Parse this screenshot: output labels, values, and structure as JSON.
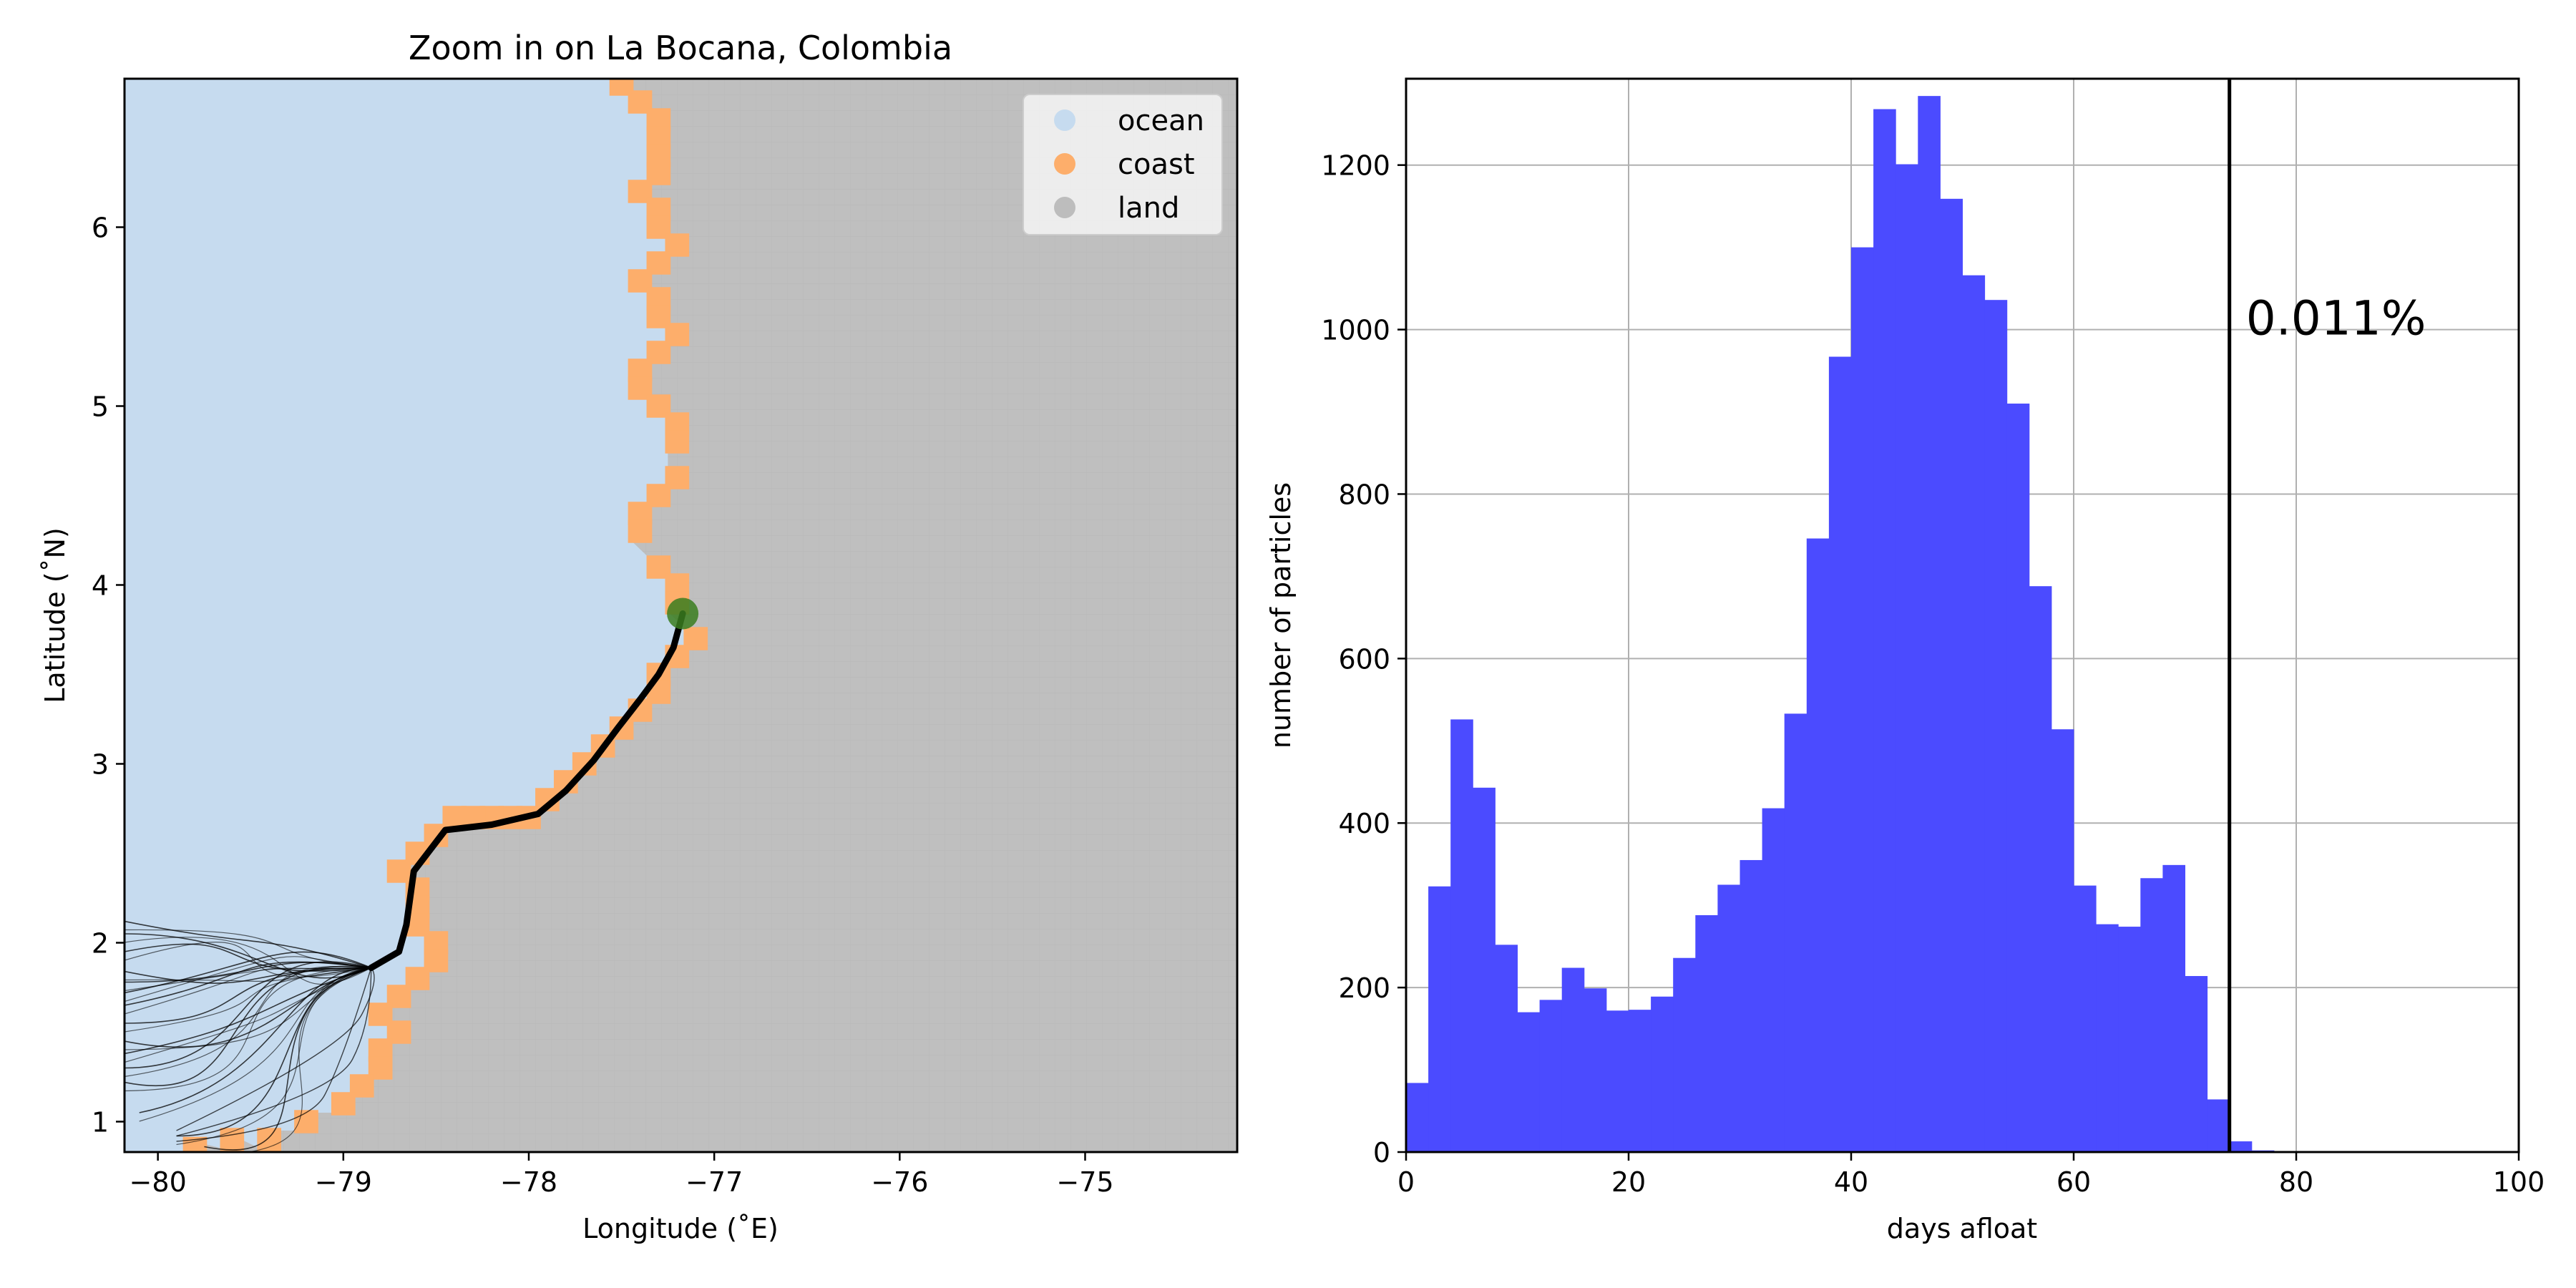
{
  "chart_data": [
    {
      "type": "map",
      "title": "Zoom in on La Bocana, Colombia",
      "xlabel": "Longitude (˚E)",
      "ylabel": "Latitude (˚N)",
      "xlim": [
        -80.18,
        -74.18
      ],
      "ylim": [
        0.83,
        6.83
      ],
      "xticks": [
        -80,
        -79,
        -78,
        -77,
        -76,
        -75
      ],
      "xtick_labels": [
        "−80",
        "−79",
        "−78",
        "−77",
        "−76",
        "−75"
      ],
      "yticks": [
        1,
        2,
        3,
        4,
        5,
        6
      ],
      "ytick_labels": [
        "1",
        "2",
        "3",
        "4",
        "5",
        "6"
      ],
      "legend": {
        "placement": "top-right",
        "entries": [
          {
            "label": "ocean",
            "color": "#c6dbef"
          },
          {
            "label": "coast",
            "color": "#fdae6b"
          },
          {
            "label": "land",
            "color": "#bdbdbd"
          }
        ]
      },
      "release_point": {
        "lon": -77.17,
        "lat": 3.84,
        "color": "#3a7d1e"
      },
      "coast_cells": [
        [
          -77.5,
          6.8
        ],
        [
          -77.4,
          6.7
        ],
        [
          -77.3,
          6.6
        ],
        [
          -77.3,
          6.5
        ],
        [
          -77.3,
          6.4
        ],
        [
          -77.3,
          6.3
        ],
        [
          -77.4,
          6.2
        ],
        [
          -77.3,
          6.1
        ],
        [
          -77.3,
          6.0
        ],
        [
          -77.2,
          5.9
        ],
        [
          -77.3,
          5.8
        ],
        [
          -77.4,
          5.7
        ],
        [
          -77.3,
          5.6
        ],
        [
          -77.3,
          5.5
        ],
        [
          -77.2,
          5.4
        ],
        [
          -77.3,
          5.3
        ],
        [
          -77.4,
          5.2
        ],
        [
          -77.4,
          5.1
        ],
        [
          -77.3,
          5.0
        ],
        [
          -77.2,
          4.9
        ],
        [
          -77.2,
          4.8
        ],
        [
          -77.2,
          4.6
        ],
        [
          -77.3,
          4.5
        ],
        [
          -77.4,
          4.4
        ],
        [
          -77.4,
          4.3
        ],
        [
          -77.3,
          4.1
        ],
        [
          -77.2,
          4.0
        ],
        [
          -77.2,
          3.9
        ],
        [
          -77.1,
          3.7
        ],
        [
          -77.2,
          3.6
        ],
        [
          -77.3,
          3.5
        ],
        [
          -77.3,
          3.4
        ],
        [
          -77.4,
          3.3
        ],
        [
          -77.5,
          3.2
        ],
        [
          -77.6,
          3.1
        ],
        [
          -77.7,
          3.0
        ],
        [
          -77.8,
          2.9
        ],
        [
          -77.9,
          2.8
        ],
        [
          -78.0,
          2.7
        ],
        [
          -78.1,
          2.7
        ],
        [
          -78.2,
          2.7
        ],
        [
          -78.3,
          2.7
        ],
        [
          -78.4,
          2.7
        ],
        [
          -78.5,
          2.6
        ],
        [
          -78.6,
          2.5
        ],
        [
          -78.7,
          2.4
        ],
        [
          -78.6,
          2.3
        ],
        [
          -78.6,
          2.2
        ],
        [
          -78.6,
          2.1
        ],
        [
          -78.5,
          2.0
        ],
        [
          -78.5,
          1.9
        ],
        [
          -78.6,
          1.8
        ],
        [
          -78.7,
          1.7
        ],
        [
          -78.8,
          1.6
        ],
        [
          -78.7,
          1.5
        ],
        [
          -78.8,
          1.4
        ],
        [
          -78.8,
          1.3
        ],
        [
          -78.9,
          1.2
        ],
        [
          -79.0,
          1.1
        ],
        [
          -79.2,
          1.0
        ],
        [
          -79.4,
          0.9
        ],
        [
          -79.6,
          0.9
        ],
        [
          -79.8,
          0.85
        ]
      ],
      "trajectory_bundle": [
        [
          -77.17,
          3.84
        ],
        [
          -77.22,
          3.65
        ],
        [
          -77.3,
          3.5
        ],
        [
          -77.4,
          3.36
        ],
        [
          -77.52,
          3.2
        ],
        [
          -77.65,
          3.02
        ],
        [
          -77.8,
          2.85
        ],
        [
          -77.95,
          2.72
        ],
        [
          -78.2,
          2.66
        ],
        [
          -78.45,
          2.63
        ],
        [
          -78.62,
          2.4
        ],
        [
          -78.66,
          2.1
        ],
        [
          -78.7,
          1.95
        ],
        [
          -78.85,
          1.86
        ]
      ],
      "trajectory_fan_ends": [
        [
          -80.18,
          1.72
        ],
        [
          -80.18,
          1.78
        ],
        [
          -80.18,
          1.84
        ],
        [
          -80.18,
          1.95
        ],
        [
          -80.18,
          2.05
        ],
        [
          -80.18,
          2.12
        ],
        [
          -80.18,
          1.65
        ],
        [
          -80.18,
          1.55
        ],
        [
          -80.18,
          1.45
        ],
        [
          -80.18,
          1.38
        ],
        [
          -80.18,
          1.3
        ],
        [
          -80.18,
          1.22
        ],
        [
          -80.1,
          1.05
        ],
        [
          -79.9,
          0.92
        ],
        [
          -79.75,
          0.86
        ]
      ]
    },
    {
      "type": "histogram",
      "xlabel": "days afloat",
      "ylabel": "number of particles",
      "xlim": [
        0,
        100
      ],
      "ylim": [
        0,
        1305
      ],
      "xticks": [
        0,
        20,
        40,
        60,
        80,
        100
      ],
      "yticks": [
        0,
        200,
        400,
        600,
        800,
        1000,
        1200
      ],
      "bin_width": 2,
      "bin_starts": [
        0,
        2,
        4,
        6,
        8,
        10,
        12,
        14,
        16,
        18,
        20,
        22,
        24,
        26,
        28,
        30,
        32,
        34,
        36,
        38,
        40,
        42,
        44,
        46,
        48,
        50,
        52,
        54,
        56,
        58,
        60,
        62,
        64,
        66,
        68,
        70,
        72,
        74,
        76
      ],
      "values": [
        84,
        323,
        526,
        443,
        252,
        170,
        185,
        224,
        199,
        172,
        173,
        189,
        236,
        288,
        325,
        355,
        418,
        533,
        746,
        967,
        1100,
        1268,
        1201,
        1284,
        1159,
        1066,
        1036,
        910,
        688,
        514,
        324,
        277,
        274,
        333,
        349,
        214,
        64,
        13,
        2
      ],
      "bar_color": "#4b4bff",
      "vline": {
        "x": 74
      },
      "annotation": {
        "text": "0.011%",
        "x": 76,
        "y": 1015
      }
    }
  ]
}
